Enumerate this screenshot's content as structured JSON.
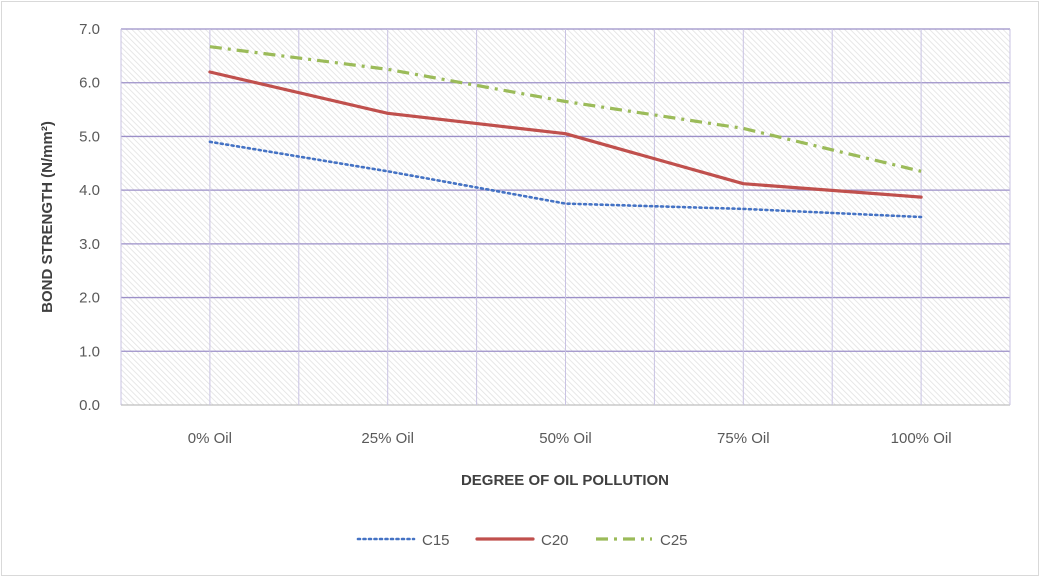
{
  "chart_data": {
    "type": "line",
    "categories": [
      "0% Oil",
      "25% Oil",
      "50% Oil",
      "75% Oil",
      "100% Oil"
    ],
    "series": [
      {
        "name": "C15",
        "values": [
          4.9,
          4.35,
          3.75,
          3.65,
          3.5
        ],
        "color": "#4472c4",
        "dash": "dotted"
      },
      {
        "name": "C20",
        "values": [
          6.2,
          5.43,
          5.05,
          4.12,
          3.87
        ],
        "color": "#c0504d",
        "dash": "solid"
      },
      {
        "name": "C25",
        "values": [
          6.67,
          6.25,
          5.65,
          5.15,
          4.35
        ],
        "color": "#9bbb59",
        "dash": "dash-dot"
      }
    ],
    "xlabel": "DEGREE OF OIL POLLUTION",
    "ylabel": "BOND STRENGTH  (N/mm²)",
    "ylim": [
      0,
      7
    ],
    "yticks": [
      "0.0",
      "1.0",
      "2.0",
      "3.0",
      "4.0",
      "5.0",
      "6.0",
      "7.0"
    ],
    "grid": true,
    "legend": "bottom"
  }
}
